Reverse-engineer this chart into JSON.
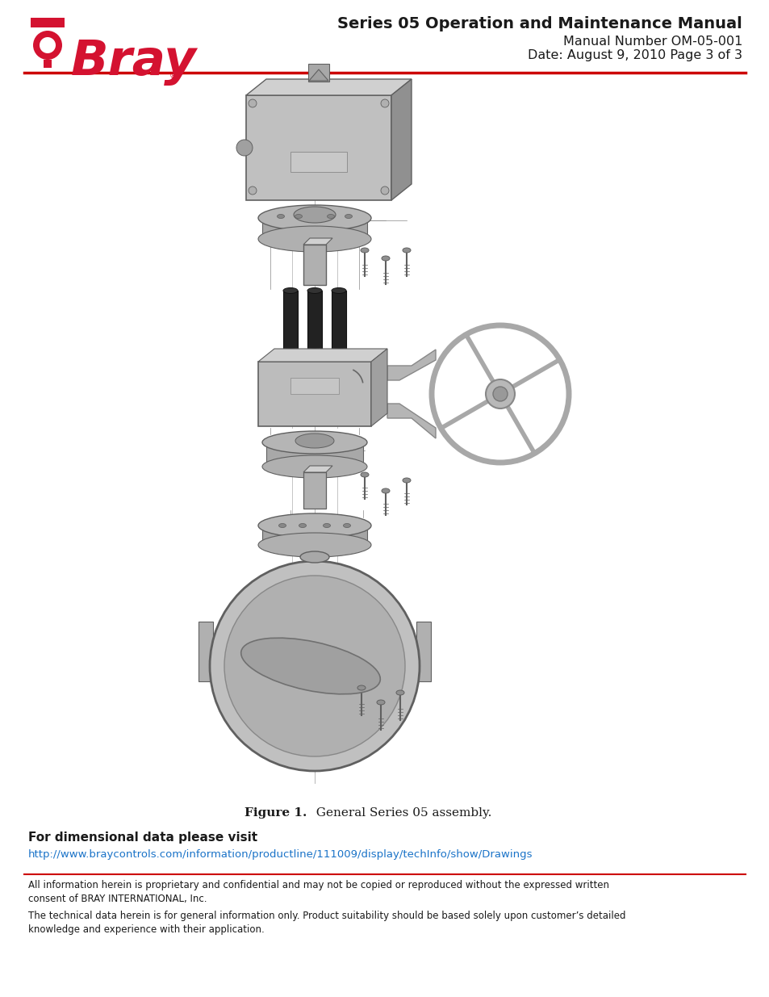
{
  "title_line1": "Series 05 Operation and Maintenance Manual",
  "title_line2": "Manual Number OM-05-001",
  "title_line3": "Date: August 9, 2010 Page 3 of 3",
  "bray_text": "Bray",
  "header_red_line_color": "#cc0000",
  "figure_caption_bold": "Figure 1.",
  "figure_caption_normal": "  General Series 05 assembly.",
  "section_title": "For dimensional data please visit",
  "url": "http://www.braycontrols.com/information/productline/111009/display/techInfo/show/Drawings",
  "url_color": "#1a73c8",
  "footer_line1": "All information herein is proprietary and confidential and may not be copied or reproduced without the expressed written",
  "footer_line2": "consent of BRAY INTERNATIONAL, Inc.",
  "footer_line3": "The technical data herein is for general information only. Product suitability should be based solely upon customer’s detailed",
  "footer_line4": "knowledge and experience with their application.",
  "footer_red_line_color": "#cc0000",
  "bg_color": "#ffffff",
  "text_color": "#1a1a1a",
  "logo_red": "#d41230"
}
